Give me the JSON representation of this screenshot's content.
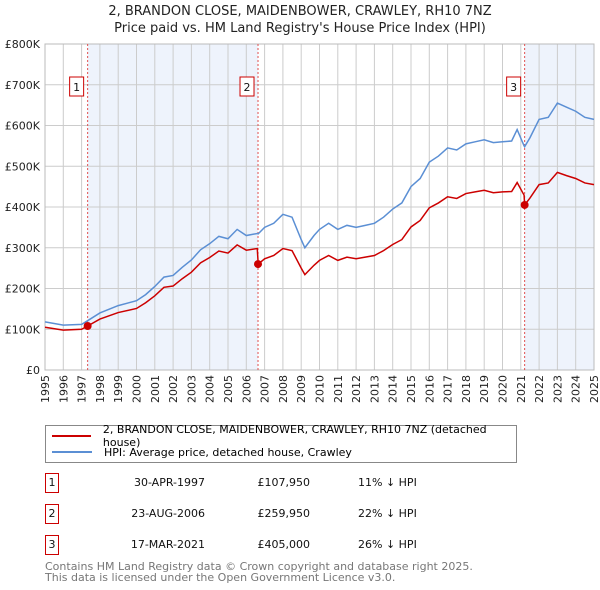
{
  "chart_data": {
    "type": "line",
    "title": "2, BRANDON CLOSE, MAIDENBOWER, CRAWLEY, RH10 7NZ",
    "subtitle": "Price paid vs. HM Land Registry's House Price Index (HPI)",
    "xlim": [
      1995,
      2025
    ],
    "ylim": [
      0,
      800000
    ],
    "ytick_labels": [
      "£0",
      "£100K",
      "£200K",
      "£300K",
      "£400K",
      "£500K",
      "£600K",
      "£700K",
      "£800K"
    ],
    "xtick_labels": [
      "1995",
      "1996",
      "1997",
      "1998",
      "1999",
      "2000",
      "2001",
      "2002",
      "2003",
      "2004",
      "2005",
      "2006",
      "2007",
      "2008",
      "2009",
      "2010",
      "2011",
      "2012",
      "2013",
      "2014",
      "2015",
      "2016",
      "2017",
      "2018",
      "2019",
      "2020",
      "2021",
      "2022",
      "2023",
      "2024",
      "2025"
    ],
    "grid": true,
    "x": [
      1995,
      1996,
      1997,
      1997.33,
      1998,
      1999,
      2000,
      2000.5,
      2001,
      2001.5,
      2002,
      2002.5,
      2003,
      2003.5,
      2004,
      2004.5,
      2005,
      2005.5,
      2006,
      2006.6,
      2006.65,
      2007,
      2007.5,
      2008,
      2008.5,
      2009,
      2009.2,
      2009.7,
      2010,
      2010.5,
      2011,
      2011.5,
      2012,
      2012.5,
      2013,
      2013.5,
      2014,
      2014.5,
      2015,
      2015.5,
      2016,
      2016.5,
      2017,
      2017.5,
      2018,
      2018.5,
      2019,
      2019.5,
      2020,
      2020.5,
      2020.8,
      2021.18,
      2021.21,
      2021.5,
      2022,
      2022.5,
      2023,
      2023.5,
      2024,
      2024.5,
      2025
    ],
    "series": [
      {
        "name": "2, BRANDON CLOSE, MAIDENBOWER, CRAWLEY, RH10 7NZ (detached house)",
        "color": "#cc0000",
        "unit": "£K",
        "values": [
          105,
          98,
          100,
          108,
          125,
          141,
          151,
          165,
          182,
          203,
          206,
          224,
          240,
          263,
          276,
          292,
          287,
          307,
          294,
          298,
          260,
          273,
          281,
          298,
          293,
          250,
          234,
          257,
          269,
          281,
          269,
          277,
          273,
          277,
          281,
          293,
          308,
          320,
          351,
          367,
          398,
          410,
          425,
          421,
          433,
          437,
          441,
          435,
          437,
          438,
          460,
          429,
          405,
          422,
          455,
          459,
          485,
          477,
          470,
          459,
          455
        ]
      },
      {
        "name": "HPI: Average price, detached house, Crawley",
        "color": "#5b8fd4",
        "unit": "£K",
        "values": [
          118,
          110,
          112,
          121,
          140,
          158,
          170,
          185,
          205,
          228,
          232,
          252,
          270,
          295,
          310,
          328,
          322,
          345,
          330,
          335,
          334,
          350,
          360,
          382,
          375,
          320,
          300,
          330,
          345,
          360,
          345,
          355,
          350,
          355,
          360,
          375,
          395,
          410,
          450,
          470,
          510,
          525,
          545,
          540,
          555,
          560,
          565,
          558,
          560,
          562,
          590,
          550,
          548,
          570,
          615,
          620,
          655,
          645,
          635,
          620,
          615
        ]
      }
    ],
    "sales": [
      {
        "label": "1",
        "x": 1997.33,
        "price": 107950,
        "date": "30-APR-1997",
        "price_text": "£107,950",
        "hpi_text": "11% ↓ HPI"
      },
      {
        "label": "2",
        "x": 2006.64,
        "price": 259950,
        "date": "23-AUG-2006",
        "price_text": "£259,950",
        "hpi_text": "22% ↓ HPI"
      },
      {
        "label": "3",
        "x": 2021.21,
        "price": 405000,
        "date": "17-MAR-2021",
        "price_text": "£405,000",
        "hpi_text": "26% ↓ HPI"
      }
    ],
    "legend_position": "below"
  },
  "footer": {
    "line1": "Contains HM Land Registry data © Crown copyright and database right 2025.",
    "line2": "This data is licensed under the Open Government Licence v3.0."
  }
}
